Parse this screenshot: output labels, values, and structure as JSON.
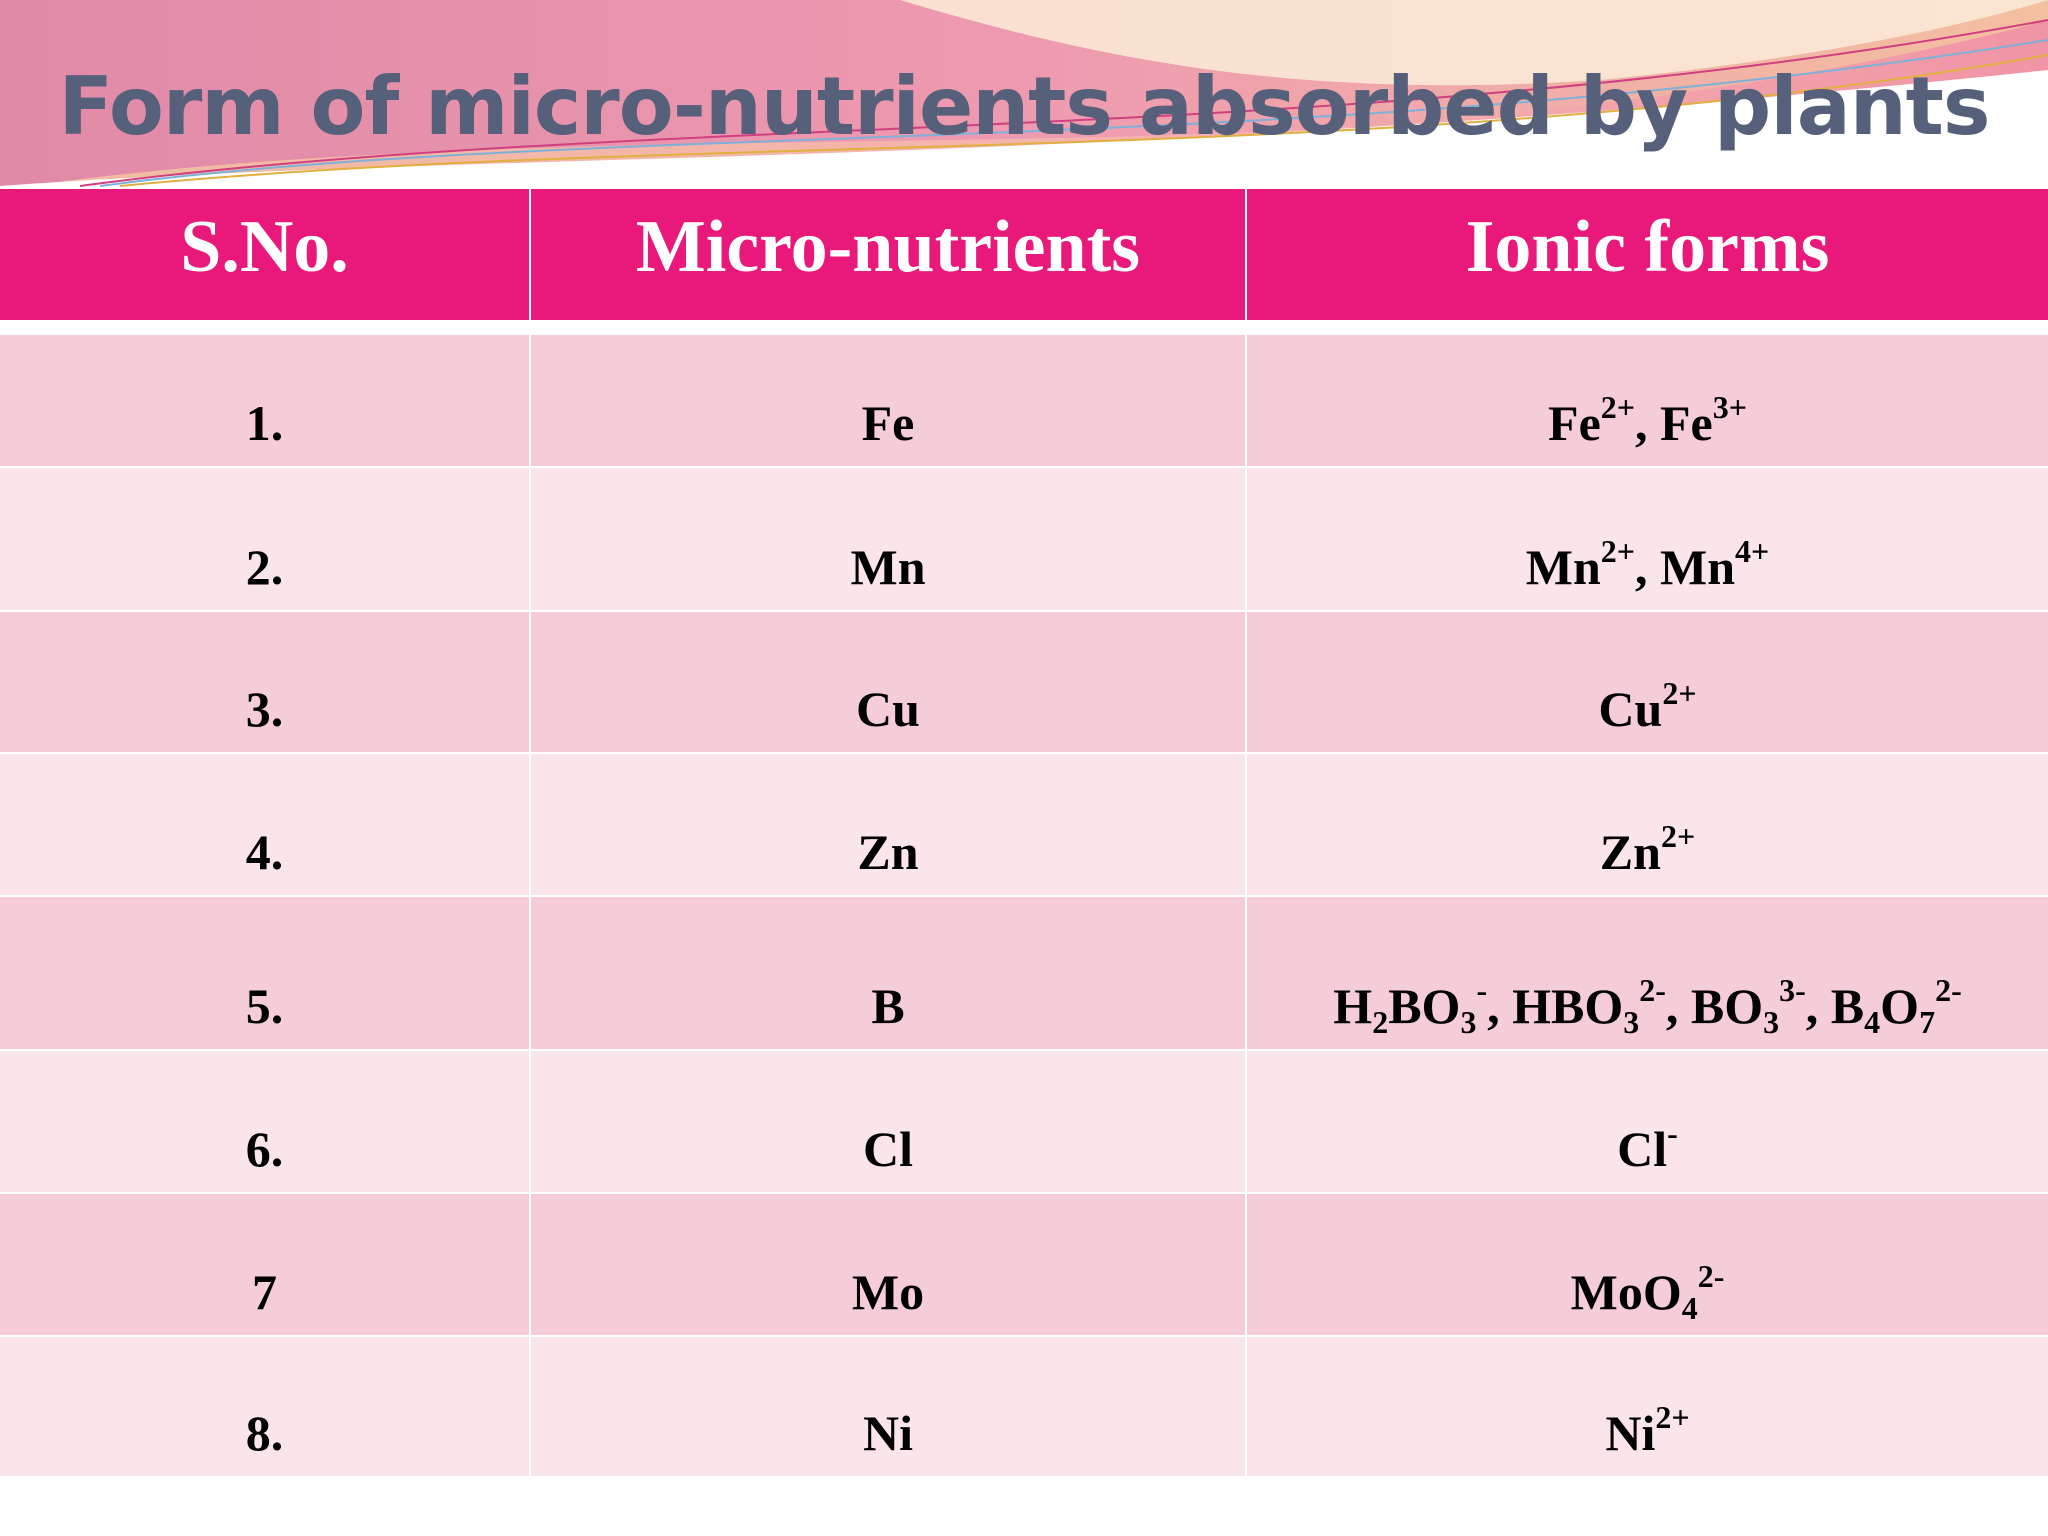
{
  "title": "Form of micro-nutrients absorbed by plants",
  "table": {
    "header": [
      "S.No.",
      "Micro-nutrients",
      "Ionic forms"
    ],
    "rows": [
      [
        "1.",
        "Fe",
        [
          {
            "text": "Fe"
          },
          {
            "text": "2+",
            "pos": "sup"
          },
          {
            "text": ", Fe"
          },
          {
            "text": "3+",
            "pos": "sup"
          }
        ]
      ],
      [
        "2.",
        "Mn",
        [
          {
            "text": "Mn"
          },
          {
            "text": "2+",
            "pos": "sup"
          },
          {
            "text": ", Mn"
          },
          {
            "text": "4+",
            "pos": "sup"
          }
        ]
      ],
      [
        "3.",
        "Cu",
        [
          {
            "text": "Cu"
          },
          {
            "text": "2+",
            "pos": "sup"
          }
        ]
      ],
      [
        "4.",
        "Zn",
        [
          {
            "text": "Zn"
          },
          {
            "text": "2+",
            "pos": "sup"
          }
        ]
      ],
      [
        "5.",
        "B",
        [
          {
            "text": "H"
          },
          {
            "text": "2",
            "pos": "sub"
          },
          {
            "text": "BO"
          },
          {
            "text": "3",
            "pos": "sub"
          },
          {
            "text": "-",
            "pos": "sup"
          },
          {
            "text": ", HBO"
          },
          {
            "text": "3",
            "pos": "sub"
          },
          {
            "text": "2-",
            "pos": "sup"
          },
          {
            "text": ", BO"
          },
          {
            "text": "3",
            "pos": "sub"
          },
          {
            "text": "3-",
            "pos": "sup"
          },
          {
            "text": ", B"
          },
          {
            "text": "4",
            "pos": "sub"
          },
          {
            "text": "O"
          },
          {
            "text": "7",
            "pos": "sub"
          },
          {
            "text": "2-",
            "pos": "sup"
          }
        ]
      ],
      [
        "6.",
        "Cl",
        [
          {
            "text": "Cl"
          },
          {
            "text": "-",
            "pos": "sup"
          }
        ]
      ],
      [
        "7",
        "Mo",
        [
          {
            "text": "MoO"
          },
          {
            "text": "4",
            "pos": "sub"
          },
          {
            "text": "2-",
            "pos": "sup"
          }
        ]
      ],
      [
        "8.",
        "Ni",
        [
          {
            "text": "Ni"
          },
          {
            "text": "2+",
            "pos": "sup"
          }
        ]
      ]
    ]
  }
}
